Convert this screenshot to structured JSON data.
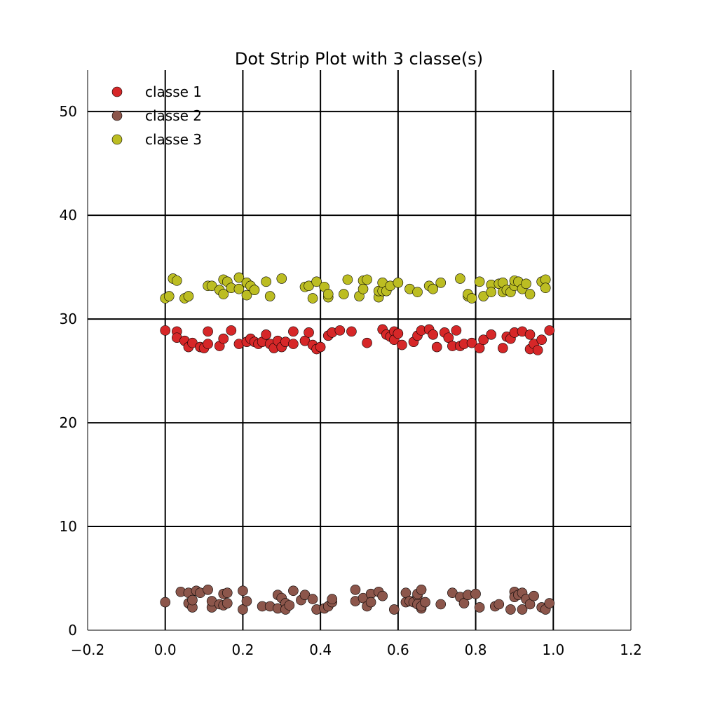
{
  "chart_data": {
    "type": "scatter",
    "title": "Dot Strip Plot with 3 classe(s)",
    "xlabel": "",
    "ylabel": "",
    "xlim": [
      -0.2,
      1.2
    ],
    "ylim": [
      0,
      54
    ],
    "xticks": [
      -0.2,
      0.0,
      0.2,
      0.4,
      0.6,
      0.8,
      1.0,
      1.2
    ],
    "xtick_labels": [
      "−0.2",
      "0.0",
      "0.2",
      "0.4",
      "0.6",
      "0.8",
      "1.0",
      "1.2"
    ],
    "yticks": [
      0,
      10,
      20,
      30,
      40,
      50
    ],
    "ytick_labels": [
      "0",
      "10",
      "20",
      "30",
      "40",
      "50"
    ],
    "grid_x": [
      0.0,
      0.2,
      0.4,
      0.6,
      0.8,
      1.0
    ],
    "grid_y": [
      10,
      20,
      30,
      40,
      50
    ],
    "legend_position": "top-left",
    "series": [
      {
        "name": "classe 1",
        "color": "#d62728",
        "points": [
          [
            0.0,
            28.9
          ],
          [
            0.03,
            28.8
          ],
          [
            0.03,
            28.2
          ],
          [
            0.05,
            27.9
          ],
          [
            0.06,
            27.3
          ],
          [
            0.07,
            27.7
          ],
          [
            0.09,
            27.3
          ],
          [
            0.1,
            27.2
          ],
          [
            0.11,
            27.6
          ],
          [
            0.11,
            28.8
          ],
          [
            0.14,
            27.4
          ],
          [
            0.15,
            28.1
          ],
          [
            0.17,
            28.9
          ],
          [
            0.19,
            27.6
          ],
          [
            0.21,
            27.8
          ],
          [
            0.22,
            28.1
          ],
          [
            0.23,
            27.8
          ],
          [
            0.24,
            27.6
          ],
          [
            0.25,
            27.8
          ],
          [
            0.26,
            28.5
          ],
          [
            0.27,
            27.6
          ],
          [
            0.28,
            27.2
          ],
          [
            0.29,
            27.9
          ],
          [
            0.3,
            27.3
          ],
          [
            0.31,
            27.8
          ],
          [
            0.33,
            28.8
          ],
          [
            0.33,
            27.6
          ],
          [
            0.36,
            27.9
          ],
          [
            0.37,
            28.7
          ],
          [
            0.38,
            27.5
          ],
          [
            0.39,
            27.1
          ],
          [
            0.4,
            27.3
          ],
          [
            0.42,
            28.4
          ],
          [
            0.43,
            28.7
          ],
          [
            0.45,
            28.9
          ],
          [
            0.48,
            28.8
          ],
          [
            0.52,
            27.7
          ],
          [
            0.56,
            29.0
          ],
          [
            0.57,
            28.5
          ],
          [
            0.58,
            28.3
          ],
          [
            0.59,
            28.8
          ],
          [
            0.59,
            28.0
          ],
          [
            0.6,
            28.6
          ],
          [
            0.61,
            27.5
          ],
          [
            0.64,
            27.8
          ],
          [
            0.65,
            28.4
          ],
          [
            0.66,
            28.9
          ],
          [
            0.68,
            29.0
          ],
          [
            0.69,
            28.5
          ],
          [
            0.7,
            27.3
          ],
          [
            0.72,
            28.7
          ],
          [
            0.73,
            28.2
          ],
          [
            0.74,
            27.4
          ],
          [
            0.75,
            28.9
          ],
          [
            0.76,
            27.4
          ],
          [
            0.77,
            27.6
          ],
          [
            0.79,
            27.7
          ],
          [
            0.81,
            27.2
          ],
          [
            0.82,
            28.0
          ],
          [
            0.84,
            28.5
          ],
          [
            0.87,
            27.2
          ],
          [
            0.88,
            28.3
          ],
          [
            0.89,
            28.1
          ],
          [
            0.9,
            28.7
          ],
          [
            0.92,
            28.8
          ],
          [
            0.94,
            28.5
          ],
          [
            0.94,
            27.1
          ],
          [
            0.95,
            27.6
          ],
          [
            0.96,
            27.0
          ],
          [
            0.97,
            28.0
          ],
          [
            0.99,
            28.9
          ]
        ]
      },
      {
        "name": "classe 2",
        "color": "#8c564b",
        "points": [
          [
            0.0,
            2.7
          ],
          [
            0.04,
            3.7
          ],
          [
            0.06,
            2.6
          ],
          [
            0.06,
            3.6
          ],
          [
            0.07,
            2.2
          ],
          [
            0.07,
            2.9
          ],
          [
            0.08,
            3.8
          ],
          [
            0.09,
            3.6
          ],
          [
            0.11,
            3.9
          ],
          [
            0.12,
            2.2
          ],
          [
            0.12,
            2.8
          ],
          [
            0.14,
            2.5
          ],
          [
            0.15,
            3.5
          ],
          [
            0.15,
            2.4
          ],
          [
            0.16,
            2.6
          ],
          [
            0.16,
            3.6
          ],
          [
            0.2,
            2.0
          ],
          [
            0.2,
            3.8
          ],
          [
            0.21,
            2.8
          ],
          [
            0.25,
            2.3
          ],
          [
            0.27,
            2.3
          ],
          [
            0.29,
            3.4
          ],
          [
            0.29,
            2.1
          ],
          [
            0.3,
            3.1
          ],
          [
            0.31,
            2.6
          ],
          [
            0.31,
            2.0
          ],
          [
            0.32,
            2.4
          ],
          [
            0.33,
            3.8
          ],
          [
            0.35,
            2.9
          ],
          [
            0.36,
            3.4
          ],
          [
            0.38,
            3.0
          ],
          [
            0.39,
            2.0
          ],
          [
            0.41,
            2.1
          ],
          [
            0.42,
            2.3
          ],
          [
            0.43,
            2.7
          ],
          [
            0.43,
            3.0
          ],
          [
            0.49,
            3.9
          ],
          [
            0.49,
            2.8
          ],
          [
            0.51,
            3.1
          ],
          [
            0.52,
            2.3
          ],
          [
            0.53,
            3.5
          ],
          [
            0.53,
            2.7
          ],
          [
            0.55,
            3.7
          ],
          [
            0.56,
            3.3
          ],
          [
            0.59,
            2.0
          ],
          [
            0.62,
            2.7
          ],
          [
            0.62,
            3.6
          ],
          [
            0.63,
            2.8
          ],
          [
            0.64,
            2.7
          ],
          [
            0.65,
            3.3
          ],
          [
            0.65,
            3.5
          ],
          [
            0.65,
            2.5
          ],
          [
            0.66,
            2.1
          ],
          [
            0.66,
            3.9
          ],
          [
            0.66,
            2.3
          ],
          [
            0.67,
            2.7
          ],
          [
            0.71,
            2.5
          ],
          [
            0.74,
            3.6
          ],
          [
            0.76,
            3.2
          ],
          [
            0.77,
            2.6
          ],
          [
            0.78,
            3.4
          ],
          [
            0.8,
            3.5
          ],
          [
            0.81,
            2.2
          ],
          [
            0.85,
            2.3
          ],
          [
            0.86,
            2.5
          ],
          [
            0.89,
            2.0
          ],
          [
            0.9,
            3.7
          ],
          [
            0.9,
            3.2
          ],
          [
            0.91,
            3.4
          ],
          [
            0.92,
            2.0
          ],
          [
            0.92,
            3.6
          ],
          [
            0.93,
            3.0
          ],
          [
            0.94,
            2.5
          ],
          [
            0.95,
            3.3
          ],
          [
            0.97,
            2.2
          ],
          [
            0.98,
            2.0
          ],
          [
            0.99,
            2.6
          ]
        ]
      },
      {
        "name": "classe 3",
        "color": "#bcbd22",
        "points": [
          [
            0.0,
            32.0
          ],
          [
            0.01,
            32.2
          ],
          [
            0.02,
            33.9
          ],
          [
            0.03,
            33.7
          ],
          [
            0.05,
            32.0
          ],
          [
            0.06,
            32.2
          ],
          [
            0.11,
            33.2
          ],
          [
            0.12,
            33.2
          ],
          [
            0.14,
            32.8
          ],
          [
            0.15,
            32.4
          ],
          [
            0.15,
            33.8
          ],
          [
            0.16,
            33.6
          ],
          [
            0.17,
            33.0
          ],
          [
            0.19,
            32.9
          ],
          [
            0.19,
            34.0
          ],
          [
            0.21,
            33.5
          ],
          [
            0.21,
            32.3
          ],
          [
            0.22,
            33.2
          ],
          [
            0.23,
            32.8
          ],
          [
            0.26,
            33.6
          ],
          [
            0.27,
            32.2
          ],
          [
            0.3,
            33.9
          ],
          [
            0.36,
            33.1
          ],
          [
            0.37,
            33.2
          ],
          [
            0.38,
            32.0
          ],
          [
            0.39,
            33.6
          ],
          [
            0.41,
            33.1
          ],
          [
            0.42,
            32.1
          ],
          [
            0.42,
            32.4
          ],
          [
            0.46,
            32.4
          ],
          [
            0.47,
            33.8
          ],
          [
            0.5,
            32.2
          ],
          [
            0.51,
            33.7
          ],
          [
            0.51,
            32.9
          ],
          [
            0.52,
            33.8
          ],
          [
            0.55,
            32.1
          ],
          [
            0.55,
            32.7
          ],
          [
            0.56,
            32.7
          ],
          [
            0.56,
            33.5
          ],
          [
            0.57,
            32.7
          ],
          [
            0.58,
            33.2
          ],
          [
            0.6,
            33.5
          ],
          [
            0.63,
            32.9
          ],
          [
            0.65,
            32.6
          ],
          [
            0.68,
            33.2
          ],
          [
            0.69,
            32.9
          ],
          [
            0.71,
            33.5
          ],
          [
            0.76,
            33.9
          ],
          [
            0.78,
            32.2
          ],
          [
            0.78,
            32.4
          ],
          [
            0.79,
            32.0
          ],
          [
            0.81,
            33.6
          ],
          [
            0.82,
            32.2
          ],
          [
            0.84,
            33.3
          ],
          [
            0.84,
            32.6
          ],
          [
            0.86,
            33.4
          ],
          [
            0.87,
            32.6
          ],
          [
            0.87,
            33.5
          ],
          [
            0.88,
            32.8
          ],
          [
            0.89,
            32.6
          ],
          [
            0.9,
            33.2
          ],
          [
            0.9,
            33.7
          ],
          [
            0.91,
            33.6
          ],
          [
            0.92,
            32.9
          ],
          [
            0.93,
            33.4
          ],
          [
            0.94,
            32.4
          ],
          [
            0.97,
            33.6
          ],
          [
            0.98,
            33.8
          ],
          [
            0.98,
            33.0
          ]
        ]
      }
    ]
  }
}
